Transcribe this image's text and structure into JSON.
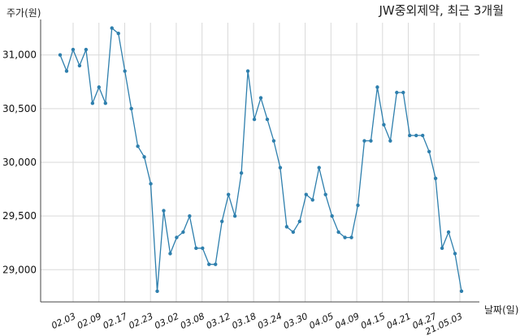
{
  "chart_data": {
    "type": "line",
    "title": "JW중외제약, 최근 3개월",
    "ylabel": "주가(원)",
    "xlabel": "날짜(일)",
    "ylim": [
      28700,
      31300
    ],
    "yticks": [
      29000,
      29500,
      30000,
      30500,
      31000
    ],
    "ytick_labels": [
      "29,000",
      "29,500",
      "30,000",
      "30,500",
      "31,000"
    ],
    "xtick_labels": [
      "02.03",
      "02.09",
      "02.17",
      "02.23",
      "03.02",
      "03.08",
      "03.12",
      "03.18",
      "03.24",
      "03.30",
      "04.05",
      "04.09",
      "04.15",
      "04.21",
      "04.27",
      "21.05.03"
    ],
    "grid": true,
    "series": [
      {
        "color": "#2e7fad",
        "values": [
          31000,
          30850,
          31050,
          30900,
          31050,
          30550,
          30700,
          30550,
          31250,
          31200,
          30850,
          30500,
          30150,
          30050,
          29800,
          28800,
          29550,
          29150,
          29300,
          29350,
          29500,
          29200,
          29200,
          29050,
          29050,
          29450,
          29700,
          29500,
          29900,
          30850,
          30400,
          30600,
          30400,
          30200,
          29950,
          29400,
          29350,
          29450,
          29700,
          29650,
          29950,
          29700,
          29500,
          29350,
          29300,
          29300,
          29600,
          30200,
          30200,
          30700,
          30350,
          30200,
          30650,
          30650,
          30250,
          30250,
          30250,
          30100,
          29850,
          29200,
          29350,
          29150,
          28800
        ]
      }
    ]
  }
}
